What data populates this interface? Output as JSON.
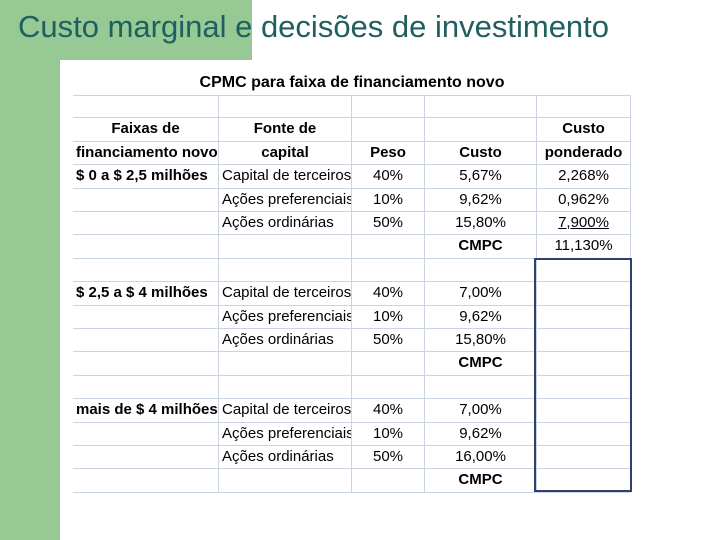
{
  "slide_title": "Custo marginal e decisões de investimento",
  "table": {
    "title": "CPMC para faixa de financiamento novo",
    "headers": {
      "faixas_line1": "Faixas de",
      "faixas_line2": "financiamento novo",
      "fonte_line1": "Fonte de",
      "fonte_line2": "capital",
      "peso": "Peso",
      "custo": "Custo",
      "custo_ponderado_line1": "Custo",
      "custo_ponderado_line2": "ponderado"
    },
    "blocks": [
      {
        "range": "$ 0 a $ 2,5 milhões",
        "rows": [
          {
            "source": "Capital de terceiros",
            "weight": "40%",
            "cost": "5,67%",
            "weighted": "2,268%"
          },
          {
            "source": "Ações preferenciais",
            "weight": "10%",
            "cost": "9,62%",
            "weighted": "0,962%"
          },
          {
            "source": "Ações ordinárias",
            "weight": "50%",
            "cost": "15,80%",
            "weighted": "7,900%"
          }
        ],
        "cmpc_label": "CMPC",
        "cmpc_value": "11,130%"
      },
      {
        "range": "$ 2,5 a $ 4 milhões",
        "rows": [
          {
            "source": "Capital de terceiros",
            "weight": "40%",
            "cost": "7,00%",
            "weighted": ""
          },
          {
            "source": "Ações preferenciais",
            "weight": "10%",
            "cost": "9,62%",
            "weighted": ""
          },
          {
            "source": "Ações ordinárias",
            "weight": "50%",
            "cost": "15,80%",
            "weighted": ""
          }
        ],
        "cmpc_label": "CMPC",
        "cmpc_value": ""
      },
      {
        "range": "mais de $ 4 milhões",
        "rows": [
          {
            "source": "Capital de terceiros",
            "weight": "40%",
            "cost": "7,00%",
            "weighted": ""
          },
          {
            "source": "Ações preferenciais",
            "weight": "10%",
            "cost": "9,62%",
            "weighted": ""
          },
          {
            "source": "Ações ordinárias",
            "weight": "50%",
            "cost": "16,00%",
            "weighted": ""
          }
        ],
        "cmpc_label": "CMPC",
        "cmpc_value": ""
      }
    ]
  },
  "colors": {
    "accent_green": "#97c995",
    "title_text": "#1f5f5f",
    "grid_line": "#c9d4e2",
    "box_border": "#2f3f6f"
  }
}
